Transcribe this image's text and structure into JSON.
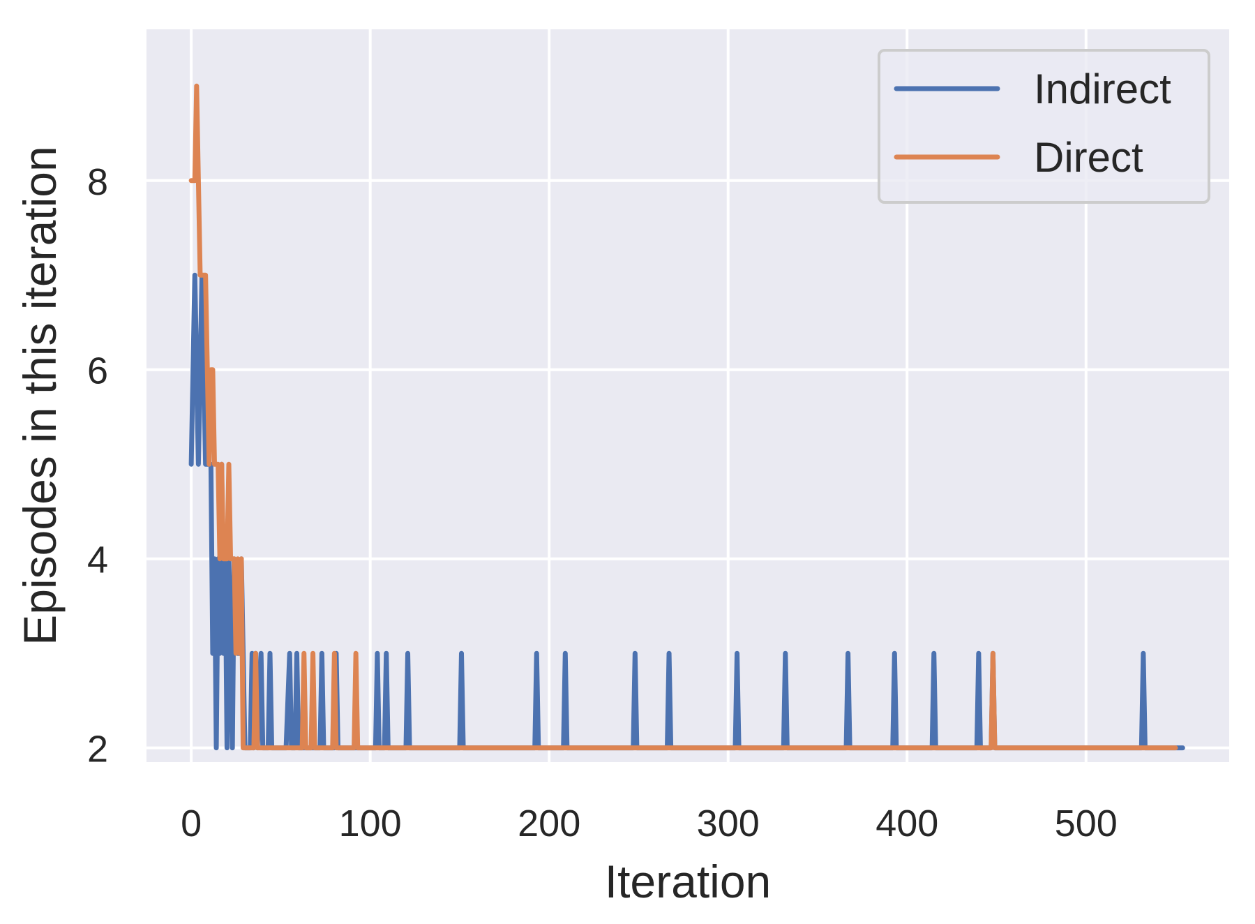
{
  "chart_data": {
    "type": "line",
    "xlabel": "Iteration",
    "ylabel": "Episodes in this iteration",
    "xlim": [
      -25,
      580
    ],
    "ylim": [
      1.85,
      9.6
    ],
    "xticks": [
      0,
      100,
      200,
      300,
      400,
      500
    ],
    "yticks": [
      2,
      4,
      6,
      8
    ],
    "grid": true,
    "legend": "top-right",
    "series": [
      {
        "name": "Indirect",
        "color": "#4c72b0",
        "points": [
          [
            0,
            5
          ],
          [
            2,
            7
          ],
          [
            4,
            5
          ],
          [
            6,
            7
          ],
          [
            8,
            5
          ],
          [
            10,
            5
          ],
          [
            11,
            5
          ],
          [
            12,
            3
          ],
          [
            13,
            4
          ],
          [
            14,
            2
          ],
          [
            15,
            4
          ],
          [
            16,
            3
          ],
          [
            17,
            5
          ],
          [
            18,
            3
          ],
          [
            19,
            4
          ],
          [
            20,
            2
          ],
          [
            21,
            4
          ],
          [
            22,
            3
          ],
          [
            23,
            2
          ],
          [
            24,
            4
          ],
          [
            26,
            3
          ],
          [
            27,
            3
          ],
          [
            28,
            4
          ],
          [
            29,
            3
          ],
          [
            30,
            2
          ],
          [
            33,
            2
          ],
          [
            34,
            3
          ],
          [
            35,
            2
          ],
          [
            36,
            3
          ],
          [
            37,
            2
          ],
          [
            39,
            3
          ],
          [
            40,
            2
          ],
          [
            43,
            2
          ],
          [
            44,
            3
          ],
          [
            45,
            2
          ],
          [
            53,
            2
          ],
          [
            55,
            3
          ],
          [
            56,
            2
          ],
          [
            58,
            2
          ],
          [
            59,
            3
          ],
          [
            60,
            2
          ],
          [
            72,
            2
          ],
          [
            73,
            3
          ],
          [
            74,
            2
          ],
          [
            80,
            2
          ],
          [
            81,
            3
          ],
          [
            82,
            2
          ],
          [
            103,
            2
          ],
          [
            104,
            3
          ],
          [
            105,
            2
          ],
          [
            108,
            2
          ],
          [
            109,
            3
          ],
          [
            110,
            2
          ],
          [
            120,
            2
          ],
          [
            121,
            3
          ],
          [
            122,
            2
          ],
          [
            150,
            2
          ],
          [
            151,
            3
          ],
          [
            152,
            2
          ],
          [
            192,
            2
          ],
          [
            193,
            3
          ],
          [
            194,
            2
          ],
          [
            208,
            2
          ],
          [
            209,
            3
          ],
          [
            210,
            2
          ],
          [
            247,
            2
          ],
          [
            248,
            3
          ],
          [
            249,
            2
          ],
          [
            266,
            2
          ],
          [
            267,
            3
          ],
          [
            268,
            2
          ],
          [
            304,
            2
          ],
          [
            305,
            3
          ],
          [
            306,
            2
          ],
          [
            331,
            2
          ],
          [
            332,
            3
          ],
          [
            333,
            2
          ],
          [
            366,
            2
          ],
          [
            367,
            3
          ],
          [
            368,
            2
          ],
          [
            392,
            2
          ],
          [
            393,
            3
          ],
          [
            394,
            2
          ],
          [
            414,
            2
          ],
          [
            415,
            3
          ],
          [
            416,
            2
          ],
          [
            439,
            2
          ],
          [
            440,
            3
          ],
          [
            441,
            2
          ],
          [
            447,
            2
          ],
          [
            448,
            3
          ],
          [
            449,
            2
          ],
          [
            531,
            2
          ],
          [
            532,
            3
          ],
          [
            533,
            2
          ],
          [
            554,
            2
          ]
        ]
      },
      {
        "name": "Direct",
        "color": "#dd8452",
        "points": [
          [
            0,
            8
          ],
          [
            2,
            8
          ],
          [
            3,
            9
          ],
          [
            4,
            8
          ],
          [
            5,
            7
          ],
          [
            6,
            7
          ],
          [
            7,
            7
          ],
          [
            8,
            7
          ],
          [
            9,
            6
          ],
          [
            10,
            5
          ],
          [
            11,
            6
          ],
          [
            12,
            6
          ],
          [
            13,
            5
          ],
          [
            14,
            5
          ],
          [
            15,
            5
          ],
          [
            16,
            4
          ],
          [
            17,
            5
          ],
          [
            18,
            4
          ],
          [
            19,
            4
          ],
          [
            20,
            4
          ],
          [
            21,
            5
          ],
          [
            22,
            4
          ],
          [
            23,
            4
          ],
          [
            24,
            4
          ],
          [
            25,
            3
          ],
          [
            26,
            4
          ],
          [
            27,
            3
          ],
          [
            28,
            4
          ],
          [
            29,
            2
          ],
          [
            35,
            2
          ],
          [
            36,
            3
          ],
          [
            37,
            2
          ],
          [
            62,
            2
          ],
          [
            63,
            3
          ],
          [
            64,
            2
          ],
          [
            67,
            2
          ],
          [
            68,
            3
          ],
          [
            69,
            2
          ],
          [
            79,
            2
          ],
          [
            80,
            3
          ],
          [
            81,
            2
          ],
          [
            91,
            2
          ],
          [
            92,
            3
          ],
          [
            93,
            2
          ],
          [
            447,
            2
          ],
          [
            448,
            3
          ],
          [
            449,
            2
          ],
          [
            550,
            2
          ]
        ]
      }
    ]
  }
}
